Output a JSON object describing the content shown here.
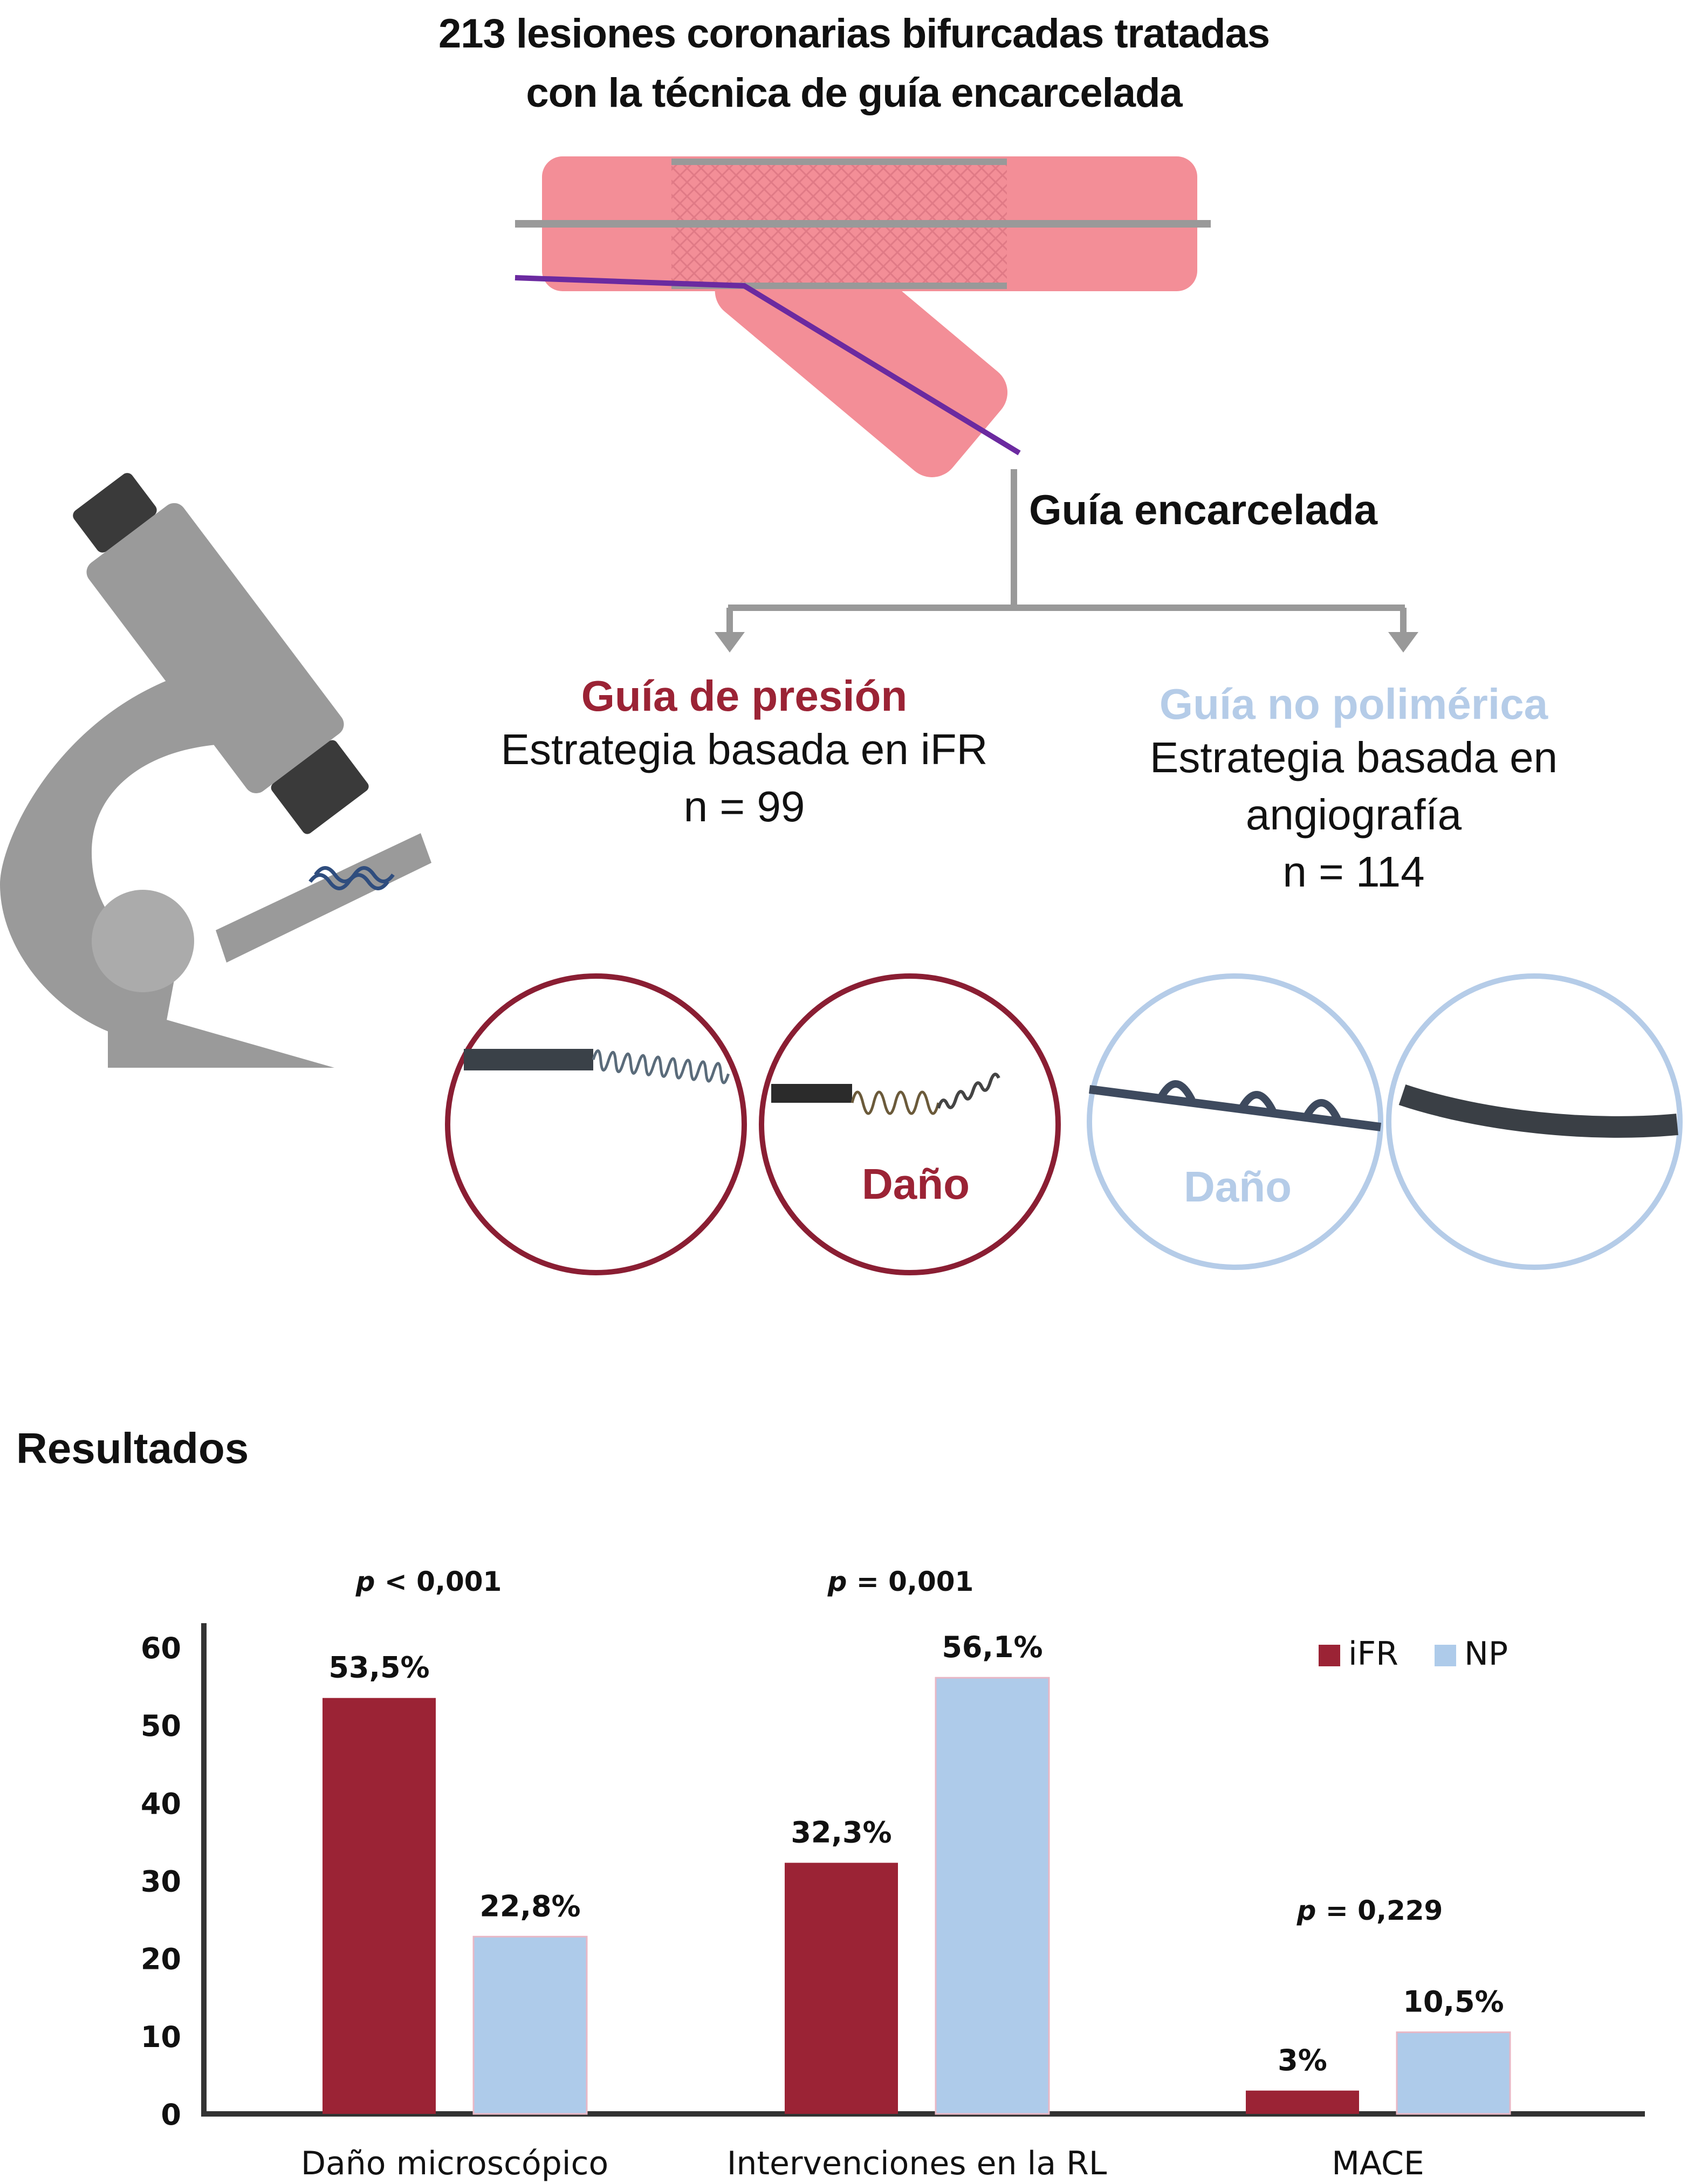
{
  "header": {
    "title_line1": "213 lesiones coronarias bifurcadas tratadas",
    "title_line2": "con la técnica de guía encarcelada"
  },
  "diagram": {
    "jailed_label": "Guía encarcelada",
    "left_group": {
      "title": "Guía de presión",
      "strategy": "Estrategia basada en iFR",
      "n": "n = 99",
      "color": "#9b2335",
      "damage_label": "Daño"
    },
    "right_group": {
      "title": "Guía no polimérica",
      "strategy": "Estrategia basada en angiografía",
      "n": "n = 114",
      "color": "#aecbea",
      "damage_label": "Daño"
    }
  },
  "results_heading": "Resultados",
  "chart_data": {
    "type": "bar",
    "categories": [
      "Daño microscópico",
      "Intervenciones en la RL",
      "MACE"
    ],
    "series": [
      {
        "name": "iFR",
        "values": [
          53.5,
          32.3,
          3
        ],
        "labels": [
          "53,5%",
          "32,3%",
          "3%"
        ],
        "color": "#9b2335"
      },
      {
        "name": "NP",
        "values": [
          22.8,
          56.1,
          10.5
        ],
        "labels": [
          "22,8%",
          "56,1%",
          "10,5%"
        ],
        "color": "#aecbea"
      }
    ],
    "p_values": [
      {
        "prefix": "p",
        "rest": " < 0,001"
      },
      {
        "prefix": "p",
        "rest": " = 0,001"
      },
      {
        "prefix": "p",
        "rest": " = 0,229"
      }
    ],
    "yticks": [
      "0",
      "10",
      "20",
      "30",
      "40",
      "50",
      "60"
    ],
    "ylim": [
      0,
      60
    ],
    "legend_position": "top-right",
    "grid": false
  }
}
